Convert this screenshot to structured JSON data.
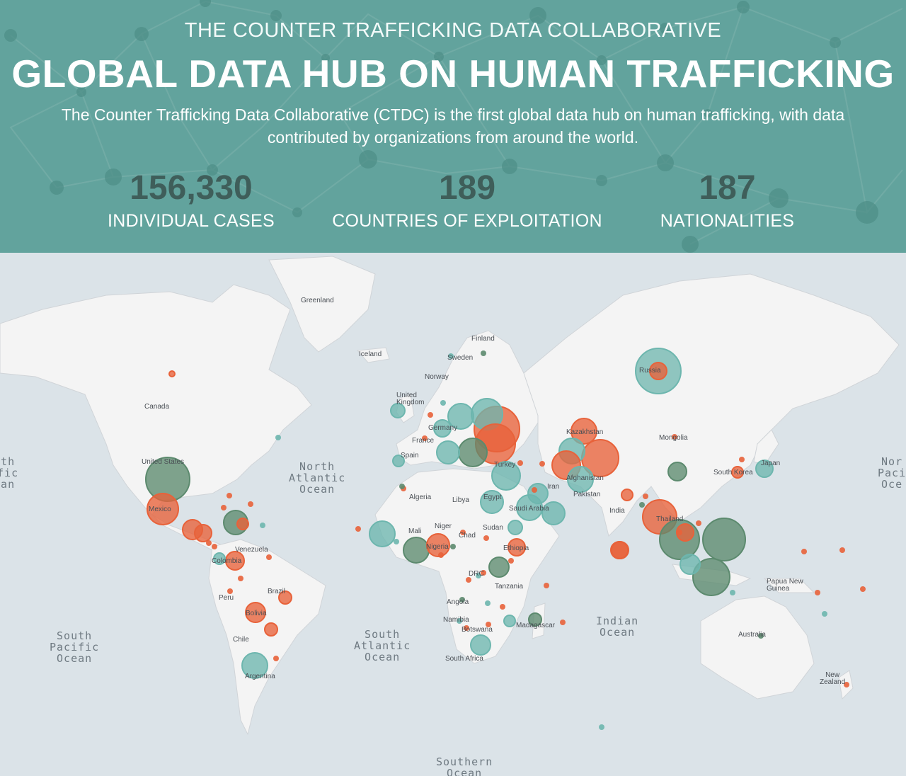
{
  "header": {
    "kicker": "THE COUNTER TRAFFICKING DATA COLLABORATIVE",
    "title": "GLOBAL DATA HUB ON HUMAN TRAFFICKING",
    "description": "The Counter Trafficking Data Collaborative (CTDC) is the first global data hub on human trafficking, with data contributed by organizations from around the world."
  },
  "stats": [
    {
      "value": "156,330",
      "label": "INDIVIDUAL CASES"
    },
    {
      "value": "189",
      "label": "COUNTRIES OF EXPLOITATION"
    },
    {
      "value": "187",
      "label": "NATIONALITIES"
    }
  ],
  "colors": {
    "hero_bg": "#62a39d",
    "stat_value": "#3f5e5a",
    "orange": "#e8623a",
    "teal": "#6db6ae",
    "dark_green": "#5c8a6e",
    "land": "#f4f4f4",
    "water": "#dbe3e8"
  },
  "map": {
    "oceans": {
      "north_pacific": "rth\nific\nean",
      "north_atlantic": "North\nAtlantic\nOcean",
      "south_pacific": "South\nPacific\nOcean",
      "south_atlantic": "South\nAtlantic\nOcean",
      "indian": "Indian\nOcean",
      "southern": "Southern\nOcean",
      "north_pacific_right": "Nor\nPaci\nOce"
    },
    "countries": {
      "greenland": "Greenland",
      "iceland": "Iceland",
      "finland": "Finland",
      "sweden": "Sweden",
      "norway": "Norway",
      "uk": "United\nKingdom",
      "germany": "Germany",
      "france": "France",
      "spain": "Spain",
      "canada": "Canada",
      "us": "United States",
      "mexico": "Mexico",
      "venezuela": "Venezuela",
      "colombia": "Colombia",
      "peru": "Peru",
      "brazil": "Brazil",
      "bolivia": "Bolivia",
      "chile": "Chile",
      "argentina": "Argentina",
      "algeria": "Algeria",
      "libya": "Libya",
      "egypt": "Egypt",
      "mali": "Mali",
      "niger": "Niger",
      "chad": "Chad",
      "sudan": "Sudan",
      "nigeria": "Nigeria",
      "ethiopia": "Ethiopia",
      "drc": "DRC",
      "tanzania": "Tanzania",
      "angola": "Angola",
      "namibia": "Namibia",
      "botswana": "Botswana",
      "south_africa": "South Africa",
      "madagascar": "Madagascar",
      "russia": "Russia",
      "kazakhstan": "Kazakhstan",
      "mongolia": "Mongolia",
      "turkey": "Turkey",
      "iran": "Iran",
      "afghanistan": "Afghanistan",
      "pakistan": "Pakistan",
      "saudi": "Saudi Arabia",
      "india": "India",
      "thailand": "Thailand",
      "south_korea": "South Korea",
      "japan": "Japan",
      "png": "Papua New\nGuinea",
      "australia": "Australia",
      "nz": "New\nZealand"
    },
    "bubbles": [
      {
        "name": "russia",
        "color": "teal",
        "v": 32
      },
      {
        "name": "russia-inner",
        "color": "orange",
        "v": 12
      },
      {
        "name": "usa",
        "color": "dark_green",
        "v": 31
      },
      {
        "name": "mexico",
        "color": "orange",
        "v": 22
      },
      {
        "name": "canada",
        "color": "orange",
        "v": 4
      },
      {
        "name": "guatemala",
        "color": "orange",
        "v": 14
      },
      {
        "name": "honduras",
        "color": "orange",
        "v": 12
      },
      {
        "name": "haiti",
        "color": "dark_green",
        "v": 17
      },
      {
        "name": "dominican",
        "color": "orange",
        "v": 8
      },
      {
        "name": "colombia",
        "color": "orange",
        "v": 13
      },
      {
        "name": "ecuador",
        "color": "teal",
        "v": 8
      },
      {
        "name": "bolivia",
        "color": "orange",
        "v": 14
      },
      {
        "name": "brazil",
        "color": "orange",
        "v": 9
      },
      {
        "name": "paraguay",
        "color": "orange",
        "v": 9
      },
      {
        "name": "argentina",
        "color": "teal",
        "v": 18
      },
      {
        "name": "ukraine",
        "color": "orange",
        "v": 32
      },
      {
        "name": "belarus",
        "color": "teal",
        "v": 22
      },
      {
        "name": "moldova",
        "color": "orange",
        "v": 28
      },
      {
        "name": "romania",
        "color": "dark_green",
        "v": 20
      },
      {
        "name": "poland",
        "color": "teal",
        "v": 18
      },
      {
        "name": "germany",
        "color": "teal",
        "v": 12
      },
      {
        "name": "uk",
        "color": "teal",
        "v": 10
      },
      {
        "name": "italy",
        "color": "teal",
        "v": 16
      },
      {
        "name": "spain",
        "color": "teal",
        "v": 8
      },
      {
        "name": "turkey",
        "color": "teal",
        "v": 20
      },
      {
        "name": "iraq",
        "color": "teal",
        "v": 14
      },
      {
        "name": "egypt",
        "color": "teal",
        "v": 16
      },
      {
        "name": "saudi",
        "color": "teal",
        "v": 18
      },
      {
        "name": "yemen",
        "color": "teal",
        "v": 16
      },
      {
        "name": "kazakhstan",
        "color": "orange",
        "v": 18
      },
      {
        "name": "kyrgyzstan",
        "color": "orange",
        "v": 26
      },
      {
        "name": "uzbekistan",
        "color": "teal",
        "v": 18
      },
      {
        "name": "tajikistan",
        "color": "orange",
        "v": 20
      },
      {
        "name": "afghanistan",
        "color": "teal",
        "v": 18
      },
      {
        "name": "china",
        "color": "dark_green",
        "v": 13
      },
      {
        "name": "india",
        "color": "orange",
        "v": 12
      },
      {
        "name": "nepal",
        "color": "orange",
        "v": 8
      },
      {
        "name": "thailand",
        "color": "orange",
        "v": 24
      },
      {
        "name": "cambodia",
        "color": "dark_green",
        "v": 28
      },
      {
        "name": "vietnam",
        "color": "orange",
        "v": 12
      },
      {
        "name": "philippines",
        "color": "dark_green",
        "v": 30
      },
      {
        "name": "indonesia",
        "color": "dark_green",
        "v": 26
      },
      {
        "name": "malaysia",
        "color": "teal",
        "v": 14
      },
      {
        "name": "japan",
        "color": "teal",
        "v": 12
      },
      {
        "name": "korea",
        "color": "orange",
        "v": 8
      },
      {
        "name": "senegal",
        "color": "teal",
        "v": 18
      },
      {
        "name": "ghana",
        "color": "dark_green",
        "v": 18
      },
      {
        "name": "nigeria",
        "color": "orange",
        "v": 16
      },
      {
        "name": "uganda",
        "color": "dark_green",
        "v": 14
      },
      {
        "name": "kenya",
        "color": "orange",
        "v": 12
      },
      {
        "name": "ethiopia",
        "color": "teal",
        "v": 10
      },
      {
        "name": "south_africa",
        "color": "teal",
        "v": 14
      },
      {
        "name": "madagascar",
        "color": "dark_green",
        "v": 9
      },
      {
        "name": "mozambique",
        "color": "teal",
        "v": 8
      },
      {
        "name": "sri_lanka",
        "color": "orange",
        "v": 12
      }
    ]
  }
}
